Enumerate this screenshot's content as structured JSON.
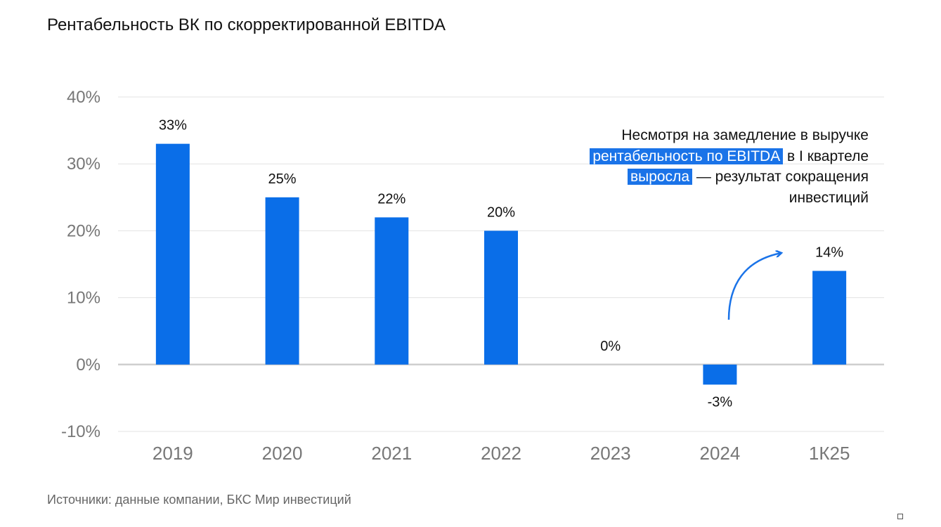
{
  "title": "Рентабельность ВК по скорректированной EBITDA",
  "chart_data": {
    "type": "bar",
    "categories": [
      "2019",
      "2020",
      "2021",
      "2022",
      "2023",
      "2024",
      "1К25"
    ],
    "values": [
      33,
      25,
      22,
      20,
      0,
      -3,
      14
    ],
    "data_labels": [
      "33%",
      "25%",
      "22%",
      "20%",
      "0%",
      "-3%",
      "14%"
    ],
    "ylim": [
      -10,
      40
    ],
    "yticks": [
      -10,
      0,
      10,
      20,
      30,
      40
    ],
    "ytick_labels": [
      "-10%",
      "0%",
      "10%",
      "20%",
      "30%",
      "40%"
    ],
    "grid": true,
    "bar_color": "#0a6ee8"
  },
  "annotation": {
    "part1": "Несмотря на замедление в выручке ",
    "highlight1": "рентабельность по EBITDA",
    "part2": " в I квартеле ",
    "highlight2": "выросла",
    "part3": " — результат сокращения инвестиций",
    "highlight_color": "#1a73e8"
  },
  "source": "Источники: данные компании, БКС Мир инвестиций"
}
